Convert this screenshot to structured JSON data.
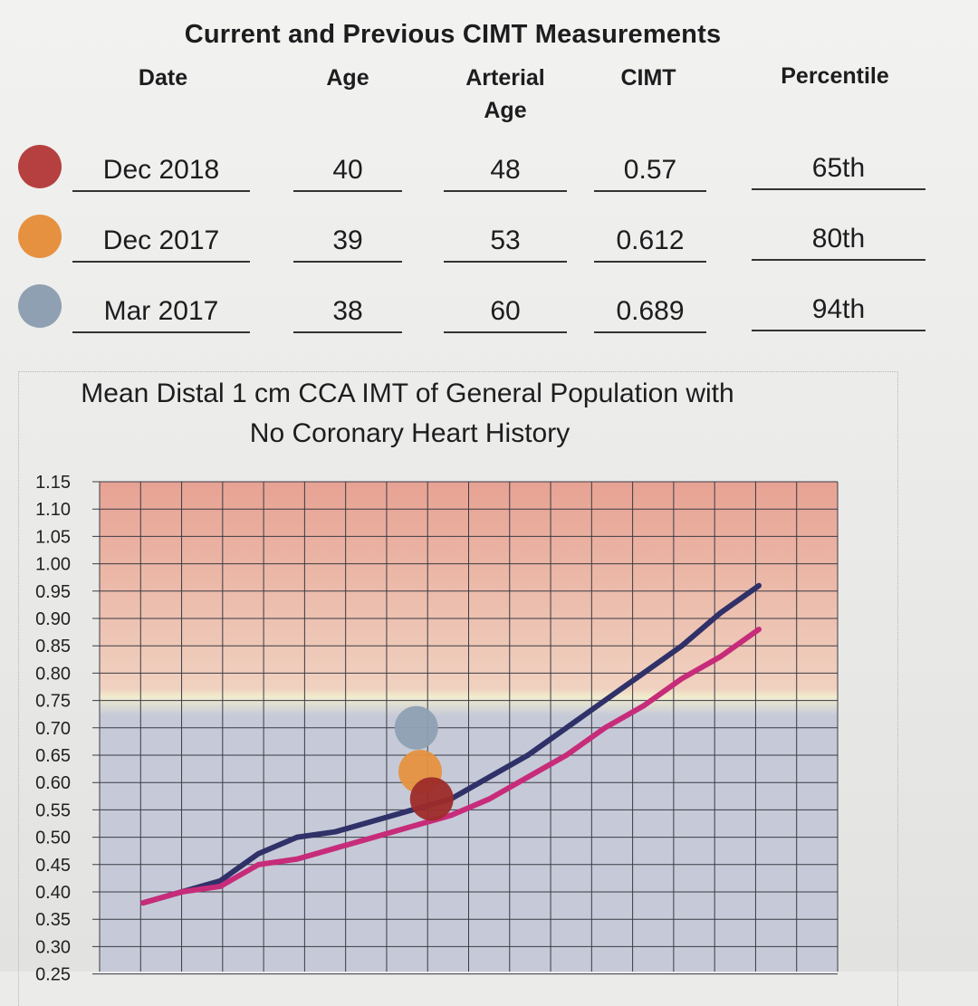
{
  "table": {
    "title": "Current and Previous CIMT Measurements",
    "headers": [
      "Date",
      "Age",
      "Arterial\nAge",
      "CIMT",
      "Percentile"
    ],
    "rows": [
      {
        "date": "Dec 2018",
        "age": "40",
        "arterial_age": "48",
        "cimt": "0.57",
        "percentile": "65th",
        "color": "#b5403f"
      },
      {
        "date": "Dec 2017",
        "age": "39",
        "arterial_age": "53",
        "cimt": "0.612",
        "percentile": "80th",
        "color": "#e6913f"
      },
      {
        "date": "Mar 2017",
        "age": "38",
        "arterial_age": "60",
        "cimt": "0.689",
        "percentile": "94th",
        "color": "#8ea0b2"
      }
    ]
  },
  "chart_data": {
    "type": "line",
    "title_line1": "Mean Distal 1 cm CCA IMT of General Population with",
    "title_line2": "No Coronary Heart History",
    "ylim": [
      0.25,
      1.15
    ],
    "yticks": [
      "1.15",
      "1.10",
      "1.05",
      "1.00",
      "0.95",
      "0.90",
      "0.85",
      "0.80",
      "0.75",
      "0.70",
      "0.65",
      "0.60",
      "0.55",
      "0.50",
      "0.45",
      "0.40",
      "0.35",
      "0.30",
      "0.25"
    ],
    "grid": true,
    "zones": [
      {
        "from": 0.77,
        "to": 1.15,
        "color": "#e7a293"
      },
      {
        "from": 0.25,
        "to": 0.72,
        "color": "#c6cad8"
      }
    ],
    "x": [
      0,
      1,
      2,
      3,
      4,
      5,
      6,
      7,
      8,
      9,
      10,
      11,
      12,
      13,
      14,
      15,
      16
    ],
    "series": [
      {
        "color": "#2f3168",
        "values": [
          0.38,
          0.4,
          0.42,
          0.47,
          0.5,
          0.51,
          0.53,
          0.55,
          0.57,
          0.61,
          0.65,
          0.7,
          0.75,
          0.8,
          0.85,
          0.91,
          0.96
        ]
      },
      {
        "color": "#c72c7a",
        "values": [
          0.38,
          0.4,
          0.41,
          0.45,
          0.46,
          0.48,
          0.5,
          0.52,
          0.54,
          0.57,
          0.61,
          0.65,
          0.7,
          0.74,
          0.79,
          0.83,
          0.88
        ]
      }
    ],
    "measurements": [
      {
        "x": 7.1,
        "y": 0.7,
        "color": "#8ea0b2"
      },
      {
        "x": 7.2,
        "y": 0.62,
        "color": "#e6913f"
      },
      {
        "x": 7.5,
        "y": 0.57,
        "color": "#9d2b2a"
      }
    ]
  }
}
